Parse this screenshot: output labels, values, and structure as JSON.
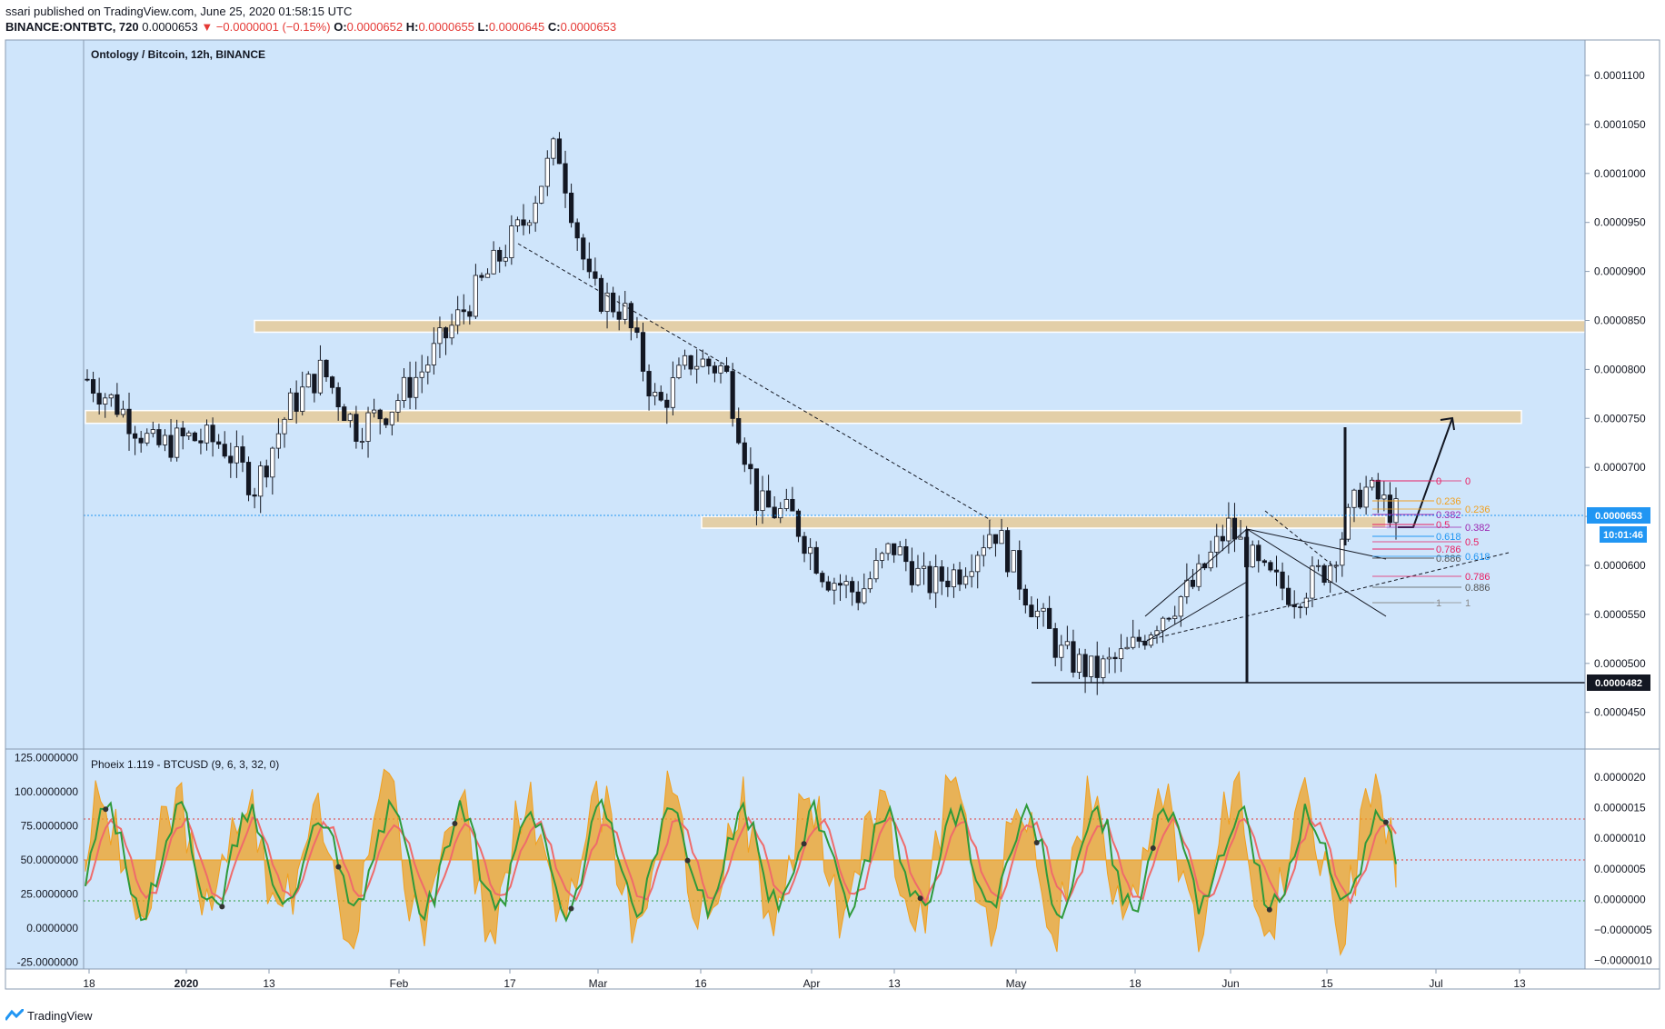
{
  "header": {
    "published": "ssari published on TradingView.com, June 25, 2020 01:58:15 UTC",
    "symbol": "BINANCE:ONTBTC, 720",
    "last": "0.0000653",
    "change": "▼ −0.0000001 (−0.15%)",
    "o_label": "O:",
    "o": "0.0000652",
    "h_label": "H:",
    "h": "0.0000655",
    "l_label": "L:",
    "l": "0.0000645",
    "c_label": "C:",
    "c": "0.0000653"
  },
  "footer": {
    "brand": "TradingView"
  },
  "colors": {
    "background": "#cfe5fb",
    "zone": "#e3cfa8",
    "oscillator_fill": "#f0a020",
    "oscillator_green": "#2e9a3a",
    "oscillator_red": "#ef6b6b",
    "up_candle": "#ffffff",
    "down_candle": "#131722",
    "last_price_badge": "#2196f3"
  },
  "chart_data": [
    {
      "type": "candlestick",
      "title": "Ontology / Bitcoin, 12h, BINANCE",
      "x_tick_labels": [
        "18",
        "2020",
        "13",
        "Feb",
        "17",
        "Mar",
        "16",
        "Apr",
        "13",
        "May",
        "18",
        "Jun",
        "15",
        "Jul",
        "13"
      ],
      "y_tick_labels": [
        "0.0001100",
        "0.0001050",
        "0.0001000",
        "0.0000950",
        "0.0000900",
        "0.0000850",
        "0.0000800",
        "0.0000750",
        "0.0000700",
        "0.0000650",
        "0.0000600",
        "0.0000550",
        "0.0000500",
        "0.0000450"
      ],
      "ylim": [
        4.18e-05,
        0.0001135
      ],
      "series": [
        {
          "name": "ONTBTC",
          "approx_closes": [
            7.9e-05,
            7.6e-05,
            7.2e-05,
            7.3e-05,
            7.25e-05,
            6.8e-05,
            7.6e-05,
            8e-05,
            7.4e-05,
            7.6e-05,
            8e-05,
            8.5e-05,
            9e-05,
            9.5e-05,
            0.000103,
            8.8e-05,
            8.6e-05,
            7.6e-05,
            8.1e-05,
            8e-05,
            6.6e-05,
            6.5e-05,
            5.9e-05,
            5.7e-05,
            6.2e-05,
            5.8e-05,
            5.95e-05,
            6.4e-05,
            5.7e-05,
            5.1e-05,
            4.9e-05,
            5.1e-05,
            5.5e-05,
            5.8e-05,
            6.4e-05,
            5.9e-05,
            5.7e-05,
            6e-05,
            6.8e-05,
            6.53e-05
          ]
        }
      ],
      "zones": [
        {
          "low": 8.38e-05,
          "high": 8.5e-05
        },
        {
          "low": 7.45e-05,
          "high": 7.58e-05
        },
        {
          "low": 6.38e-05,
          "high": 6.5e-05
        }
      ],
      "horizontal_line": 4.82e-05,
      "last_price": "0.0000653",
      "countdown": "10:01:46",
      "support_label": "0.0000482",
      "fib_left": [
        "0",
        "0.236",
        "0.382",
        "0.5",
        "0.618",
        "0.786",
        "0.886",
        "1"
      ],
      "fib_right": [
        "0",
        "0.236",
        "0.382",
        "0.5",
        "0.618",
        "0.786",
        "0.886",
        "1"
      ]
    },
    {
      "type": "area",
      "title": "Phoeix 1.119 - BTCUSD (9, 6, 3, 32, 0)",
      "y_tick_labels_left": [
        "125.0000000",
        "100.0000000",
        "75.0000000",
        "50.0000000",
        "25.0000000",
        "0.0000000",
        "-25.0000000"
      ],
      "y_tick_labels_right": [
        "0.0000020",
        "0.0000015",
        "0.0000010",
        "0.0000005",
        "0.0000000",
        "−0.0000005",
        "−0.0000010"
      ],
      "ylim": [
        -30,
        130
      ],
      "levels": [
        80,
        50,
        20
      ]
    }
  ]
}
